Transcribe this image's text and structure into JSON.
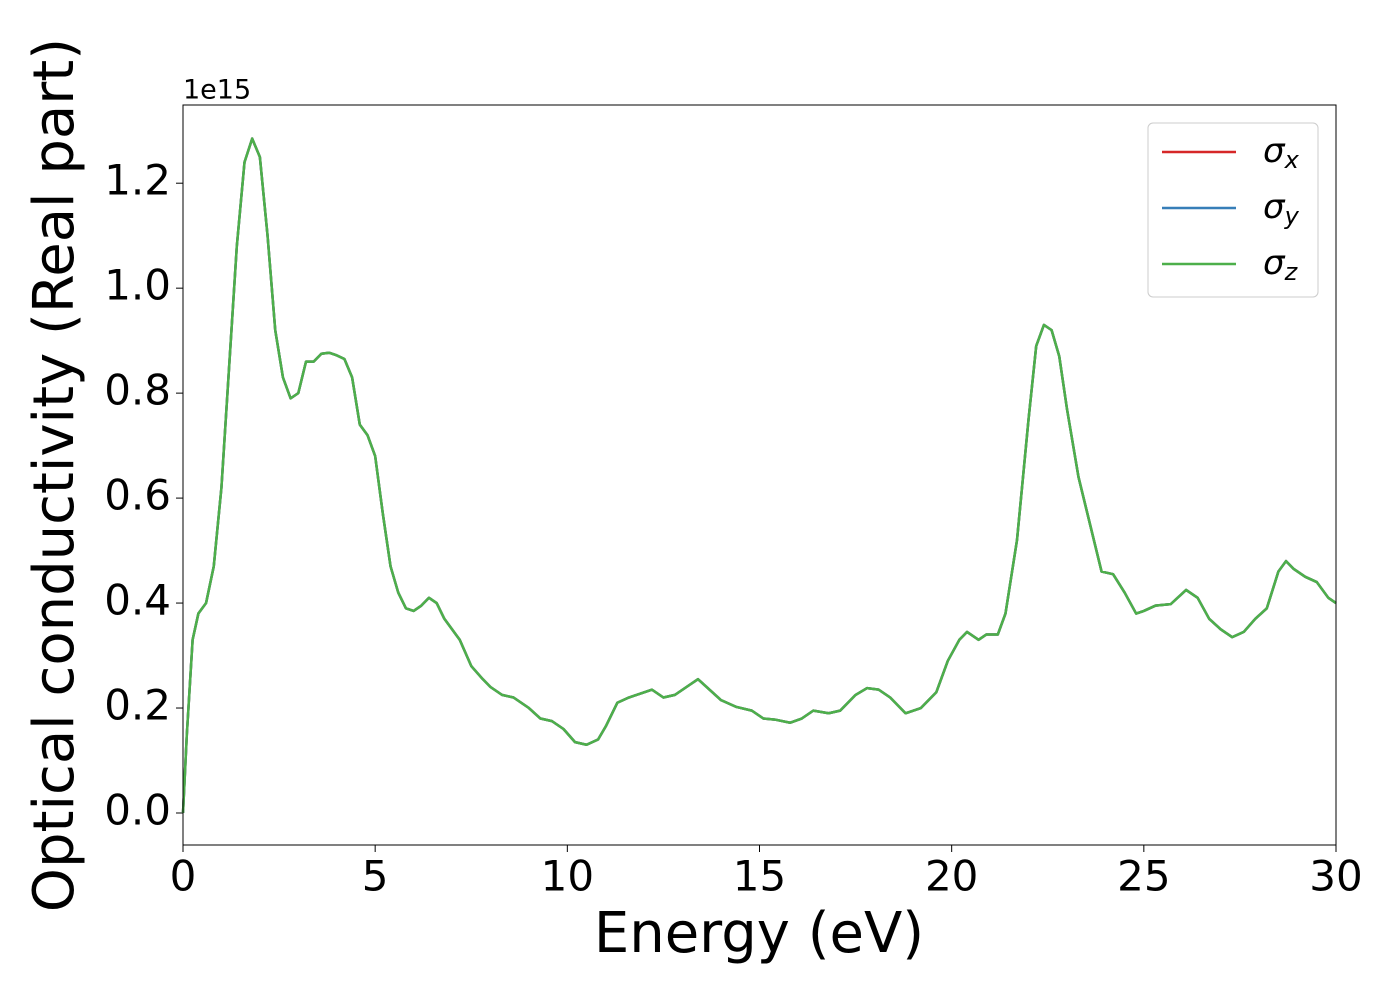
{
  "chart_data": {
    "type": "line",
    "xlabel": "Energy (eV)",
    "ylabel": "Optical conductivity (Real part)",
    "y_offset_label": "1e15",
    "x": [
      0,
      0.1,
      0.25,
      0.4,
      0.6,
      0.8,
      1.0,
      1.2,
      1.4,
      1.6,
      1.8,
      2.0,
      2.2,
      2.4,
      2.6,
      2.8,
      3.0,
      3.2,
      3.4,
      3.6,
      3.8,
      4.0,
      4.2,
      4.4,
      4.6,
      4.8,
      5.0,
      5.2,
      5.4,
      5.6,
      5.8,
      6.0,
      6.2,
      6.4,
      6.6,
      6.8,
      7.0,
      7.2,
      7.5,
      7.8,
      8.0,
      8.3,
      8.6,
      9.0,
      9.3,
      9.6,
      9.9,
      10.2,
      10.5,
      10.8,
      11.0,
      11.3,
      11.6,
      12.0,
      12.2,
      12.5,
      12.8,
      13.2,
      13.4,
      13.7,
      14.0,
      14.4,
      14.8,
      15.1,
      15.4,
      15.8,
      16.1,
      16.4,
      16.8,
      17.1,
      17.5,
      17.8,
      18.1,
      18.4,
      18.8,
      19.2,
      19.6,
      19.9,
      20.2,
      20.4,
      20.7,
      20.9,
      21.2,
      21.4,
      21.7,
      22.0,
      22.2,
      22.4,
      22.6,
      22.8,
      23.0,
      23.3,
      23.6,
      23.9,
      24.2,
      24.5,
      24.8,
      25.0,
      25.3,
      25.7,
      26.1,
      26.4,
      26.7,
      27.0,
      27.3,
      27.6,
      27.9,
      28.2,
      28.5,
      28.7,
      28.9,
      29.2,
      29.5,
      29.8,
      30.0
    ],
    "series": [
      {
        "name": "σx",
        "color": "#d62728",
        "values": [
          0,
          0.15,
          0.33,
          0.38,
          0.4,
          0.47,
          0.62,
          0.85,
          1.08,
          1.24,
          1.285,
          1.25,
          1.1,
          0.92,
          0.83,
          0.79,
          0.8,
          0.86,
          0.86,
          0.875,
          0.877,
          0.872,
          0.865,
          0.83,
          0.74,
          0.72,
          0.68,
          0.57,
          0.47,
          0.42,
          0.39,
          0.385,
          0.395,
          0.41,
          0.4,
          0.37,
          0.35,
          0.33,
          0.28,
          0.255,
          0.24,
          0.225,
          0.22,
          0.2,
          0.18,
          0.175,
          0.16,
          0.135,
          0.13,
          0.14,
          0.165,
          0.21,
          0.22,
          0.23,
          0.235,
          0.22,
          0.225,
          0.245,
          0.255,
          0.235,
          0.215,
          0.202,
          0.195,
          0.18,
          0.178,
          0.172,
          0.18,
          0.195,
          0.19,
          0.195,
          0.225,
          0.238,
          0.235,
          0.22,
          0.19,
          0.2,
          0.23,
          0.29,
          0.33,
          0.345,
          0.33,
          0.34,
          0.34,
          0.38,
          0.52,
          0.75,
          0.89,
          0.93,
          0.92,
          0.87,
          0.77,
          0.64,
          0.55,
          0.46,
          0.455,
          0.42,
          0.38,
          0.385,
          0.395,
          0.398,
          0.425,
          0.41,
          0.37,
          0.35,
          0.335,
          0.345,
          0.37,
          0.39,
          0.46,
          0.48,
          0.465,
          0.45,
          0.44,
          0.41,
          0.4
        ]
      },
      {
        "name": "σy",
        "color": "#377eb8",
        "values": [
          0,
          0.15,
          0.33,
          0.38,
          0.4,
          0.47,
          0.62,
          0.85,
          1.08,
          1.24,
          1.285,
          1.25,
          1.1,
          0.92,
          0.83,
          0.79,
          0.8,
          0.86,
          0.86,
          0.875,
          0.877,
          0.872,
          0.865,
          0.83,
          0.74,
          0.72,
          0.68,
          0.57,
          0.47,
          0.42,
          0.39,
          0.385,
          0.395,
          0.41,
          0.4,
          0.37,
          0.35,
          0.33,
          0.28,
          0.255,
          0.24,
          0.225,
          0.22,
          0.2,
          0.18,
          0.175,
          0.16,
          0.135,
          0.13,
          0.14,
          0.165,
          0.21,
          0.22,
          0.23,
          0.235,
          0.22,
          0.225,
          0.245,
          0.255,
          0.235,
          0.215,
          0.202,
          0.195,
          0.18,
          0.178,
          0.172,
          0.18,
          0.195,
          0.19,
          0.195,
          0.225,
          0.238,
          0.235,
          0.22,
          0.19,
          0.2,
          0.23,
          0.29,
          0.33,
          0.345,
          0.33,
          0.34,
          0.34,
          0.38,
          0.52,
          0.75,
          0.89,
          0.93,
          0.92,
          0.87,
          0.77,
          0.64,
          0.55,
          0.46,
          0.455,
          0.42,
          0.38,
          0.385,
          0.395,
          0.398,
          0.425,
          0.41,
          0.37,
          0.35,
          0.335,
          0.345,
          0.37,
          0.39,
          0.46,
          0.48,
          0.465,
          0.45,
          0.44,
          0.41,
          0.4
        ]
      },
      {
        "name": "σz",
        "color": "#4daf4a",
        "values": [
          0,
          0.15,
          0.33,
          0.38,
          0.4,
          0.47,
          0.62,
          0.85,
          1.08,
          1.24,
          1.285,
          1.25,
          1.1,
          0.92,
          0.83,
          0.79,
          0.8,
          0.86,
          0.86,
          0.875,
          0.877,
          0.872,
          0.865,
          0.83,
          0.74,
          0.72,
          0.68,
          0.57,
          0.47,
          0.42,
          0.39,
          0.385,
          0.395,
          0.41,
          0.4,
          0.37,
          0.35,
          0.33,
          0.28,
          0.255,
          0.24,
          0.225,
          0.22,
          0.2,
          0.18,
          0.175,
          0.16,
          0.135,
          0.13,
          0.14,
          0.165,
          0.21,
          0.22,
          0.23,
          0.235,
          0.22,
          0.225,
          0.245,
          0.255,
          0.235,
          0.215,
          0.202,
          0.195,
          0.18,
          0.178,
          0.172,
          0.18,
          0.195,
          0.19,
          0.195,
          0.225,
          0.238,
          0.235,
          0.22,
          0.19,
          0.2,
          0.23,
          0.29,
          0.33,
          0.345,
          0.33,
          0.34,
          0.34,
          0.38,
          0.52,
          0.75,
          0.89,
          0.93,
          0.92,
          0.87,
          0.77,
          0.64,
          0.55,
          0.46,
          0.455,
          0.42,
          0.38,
          0.385,
          0.395,
          0.398,
          0.425,
          0.41,
          0.37,
          0.35,
          0.335,
          0.345,
          0.37,
          0.39,
          0.46,
          0.48,
          0.465,
          0.45,
          0.44,
          0.41,
          0.4
        ]
      }
    ],
    "xlim": [
      0,
      30
    ],
    "xticks": [
      0,
      5,
      10,
      15,
      20,
      25,
      30
    ],
    "ylim": [
      -0.061,
      1.349
    ],
    "yticks": [
      {
        "value": 0,
        "label": "0.0"
      },
      0.2,
      0.4,
      0.6,
      0.8,
      {
        "value": 1,
        "label": "1.0"
      },
      1.2
    ],
    "grid": false,
    "legend": "upper right"
  }
}
